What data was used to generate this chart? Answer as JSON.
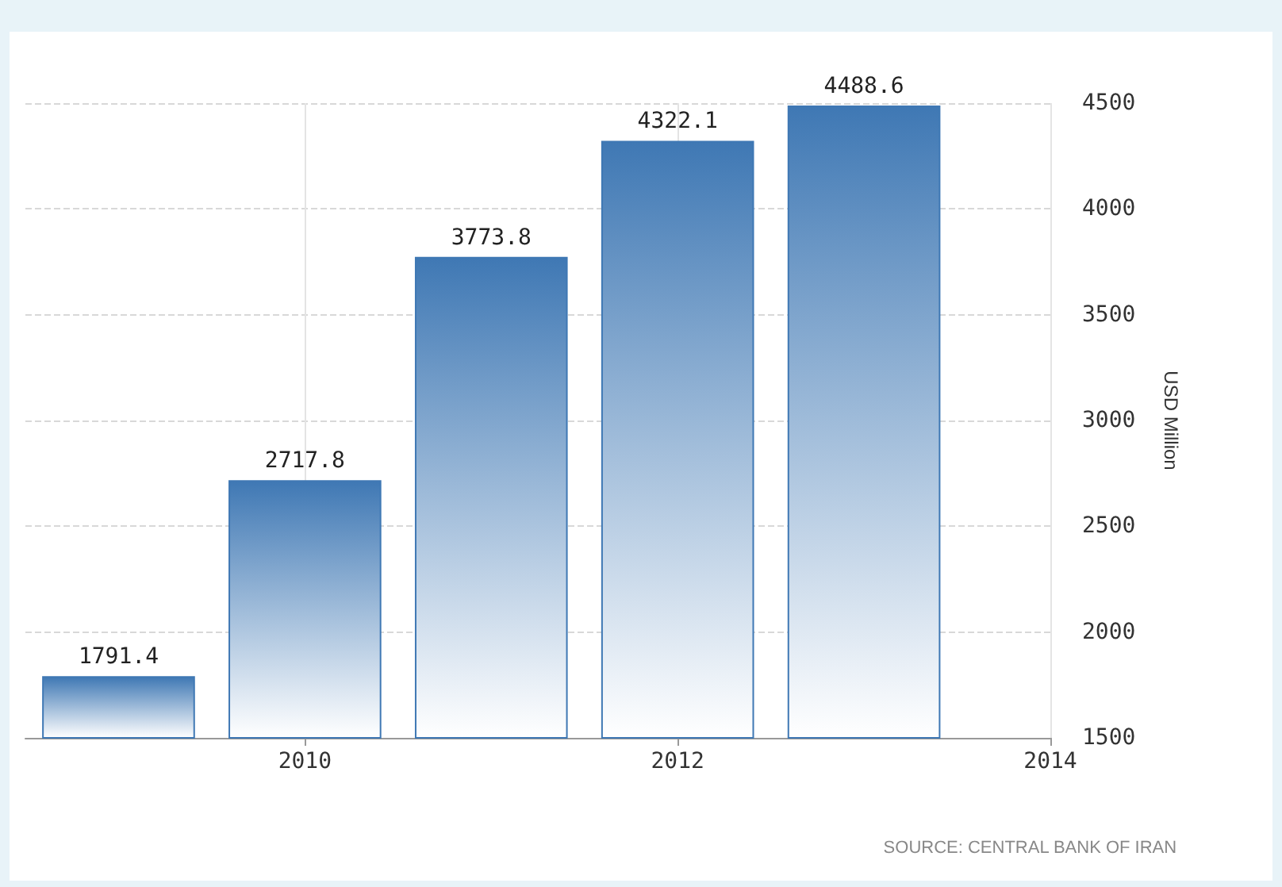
{
  "chart_data": {
    "type": "bar",
    "x": [
      2009,
      2010,
      2011,
      2012,
      2013
    ],
    "values": [
      1791.4,
      2717.8,
      3773.8,
      4322.1,
      4488.6
    ],
    "color": "#3f78b4",
    "xlim": [
      2008.5,
      2014
    ],
    "xticks": [
      2010,
      2012,
      2014
    ],
    "ylim": [
      1500,
      4500
    ],
    "yticks": [
      1500,
      2000,
      2500,
      3000,
      3500,
      4000,
      4500
    ],
    "ylabel": "USD Million",
    "data_labels": true,
    "grid": true,
    "annotations": [
      "SOURCE: CENTRAL BANK OF IRAN"
    ]
  }
}
